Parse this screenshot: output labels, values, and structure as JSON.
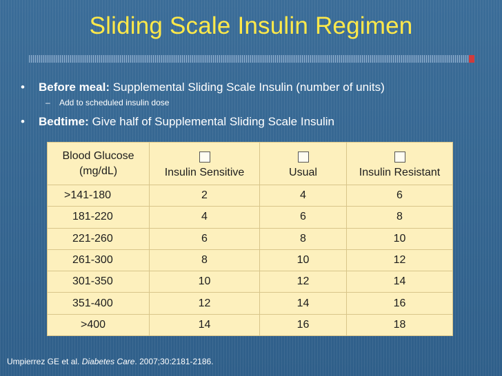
{
  "title": "Sliding Scale Insulin Regimen",
  "bullets": {
    "before_meal_label": "Before meal:",
    "before_meal_text": " Supplemental Sliding Scale Insulin (number of units)",
    "before_meal_sub": "Add to scheduled insulin dose",
    "bedtime_label": "Bedtime:",
    "bedtime_text": " Give half of Supplemental Sliding Scale Insulin",
    "bullet_glyph": "•",
    "dash_glyph": "–"
  },
  "table": {
    "headers": {
      "glucose_line1": "Blood Glucose",
      "glucose_line2": "(mg/dL)",
      "sensitive": "Insulin Sensitive",
      "usual": "Usual",
      "resistant": "Insulin Resistant"
    },
    "rows": [
      {
        "range": ">141-180",
        "sensitive": "2",
        "usual": "4",
        "resistant": "6"
      },
      {
        "range": "181-220",
        "sensitive": "4",
        "usual": "6",
        "resistant": "8"
      },
      {
        "range": "221-260",
        "sensitive": "6",
        "usual": "8",
        "resistant": "10"
      },
      {
        "range": "261-300",
        "sensitive": "8",
        "usual": "10",
        "resistant": "12"
      },
      {
        "range": "301-350",
        "sensitive": "10",
        "usual": "12",
        "resistant": "14"
      },
      {
        "range": "351-400",
        "sensitive": "12",
        "usual": "14",
        "resistant": "16"
      },
      {
        "range": ">400",
        "sensitive": "14",
        "usual": "16",
        "resistant": "18"
      }
    ]
  },
  "citation": {
    "authors": "Umpierrez GE et al. ",
    "journal": "Diabetes Care",
    "details": ". 2007;30:2181-2186."
  },
  "colors": {
    "background": "#2f5f8a",
    "title": "#ffe94a",
    "table_fill": "#fdf0bd",
    "text": "#ffffff"
  }
}
